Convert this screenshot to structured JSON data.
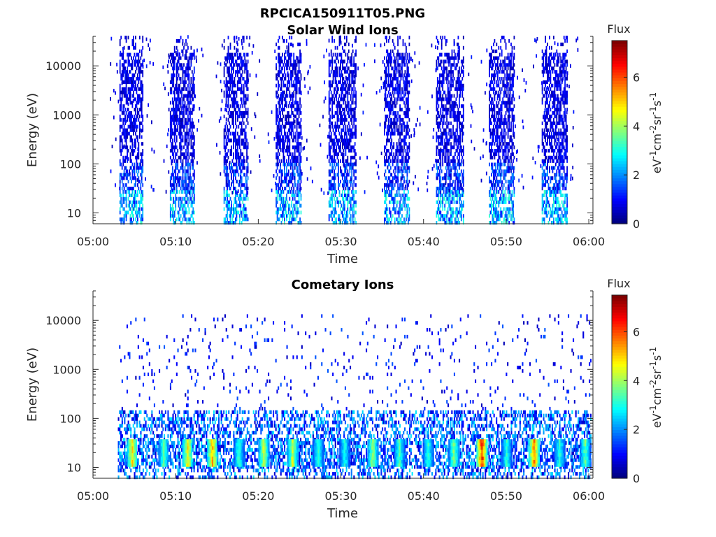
{
  "figure_title": "RPCICA150911T05.PNG",
  "chart_data": [
    {
      "type": "heatmap",
      "title": "Solar Wind Ions",
      "xlabel": "Time",
      "ylabel": "Energy (eV)",
      "x_ticks": [
        "05:00",
        "05:10",
        "05:20",
        "05:30",
        "05:40",
        "05:50",
        "06:00"
      ],
      "x_range_minutes": [
        0,
        60.5
      ],
      "y_ticks": [
        "10",
        "100",
        "1000",
        "10000"
      ],
      "y_range_eV": [
        6,
        40000
      ],
      "y_scale": "log",
      "colorbar": {
        "title": "Flux",
        "label": "eV-1cm-2sr-1s-1",
        "ticks": [
          "0",
          "2",
          "4",
          "6"
        ],
        "range": [
          0,
          7.5
        ],
        "colormap": "jet"
      },
      "bursts": [
        {
          "start": 3.2,
          "end": 6.0
        },
        {
          "start": 9.3,
          "end": 12.2
        },
        {
          "start": 15.8,
          "end": 18.8
        },
        {
          "start": 22.1,
          "end": 25.2
        },
        {
          "start": 28.5,
          "end": 31.8
        },
        {
          "start": 35.2,
          "end": 38.3
        },
        {
          "start": 41.5,
          "end": 44.8
        },
        {
          "start": 47.9,
          "end": 51.0
        },
        {
          "start": 54.3,
          "end": 57.4
        }
      ]
    },
    {
      "type": "heatmap",
      "title": "Cometary Ions",
      "xlabel": "Time",
      "ylabel": "Energy (eV)",
      "x_ticks": [
        "05:00",
        "05:10",
        "05:20",
        "05:30",
        "05:40",
        "05:50",
        "06:00"
      ],
      "x_range_minutes": [
        0,
        60.5
      ],
      "y_ticks": [
        "10",
        "100",
        "1000",
        "10000"
      ],
      "y_range_eV": [
        6,
        40000
      ],
      "y_scale": "log",
      "colorbar": {
        "title": "Flux",
        "label": "eV-1cm-2sr-1s-1",
        "ticks": [
          "0",
          "2",
          "4",
          "6"
        ],
        "range": [
          0,
          7.5
        ],
        "colormap": "jet"
      },
      "peaks": [
        {
          "time": 4.7,
          "value": 5.2
        },
        {
          "time": 8.5,
          "value": 3.8
        },
        {
          "time": 11.4,
          "value": 5.0
        },
        {
          "time": 14.4,
          "value": 5.6
        },
        {
          "time": 17.6,
          "value": 3.5
        },
        {
          "time": 20.6,
          "value": 4.5
        },
        {
          "time": 24.1,
          "value": 4.6
        },
        {
          "time": 27.2,
          "value": 3.4
        },
        {
          "time": 30.4,
          "value": 3.2
        },
        {
          "time": 33.8,
          "value": 4.2
        },
        {
          "time": 37.0,
          "value": 3.6
        },
        {
          "time": 40.5,
          "value": 3.4
        },
        {
          "time": 43.6,
          "value": 4.0
        },
        {
          "time": 47.0,
          "value": 6.8
        },
        {
          "time": 50.0,
          "value": 3.4
        },
        {
          "time": 53.3,
          "value": 6.0
        },
        {
          "time": 56.4,
          "value": 3.4
        },
        {
          "time": 59.5,
          "value": 3.8
        }
      ]
    }
  ]
}
